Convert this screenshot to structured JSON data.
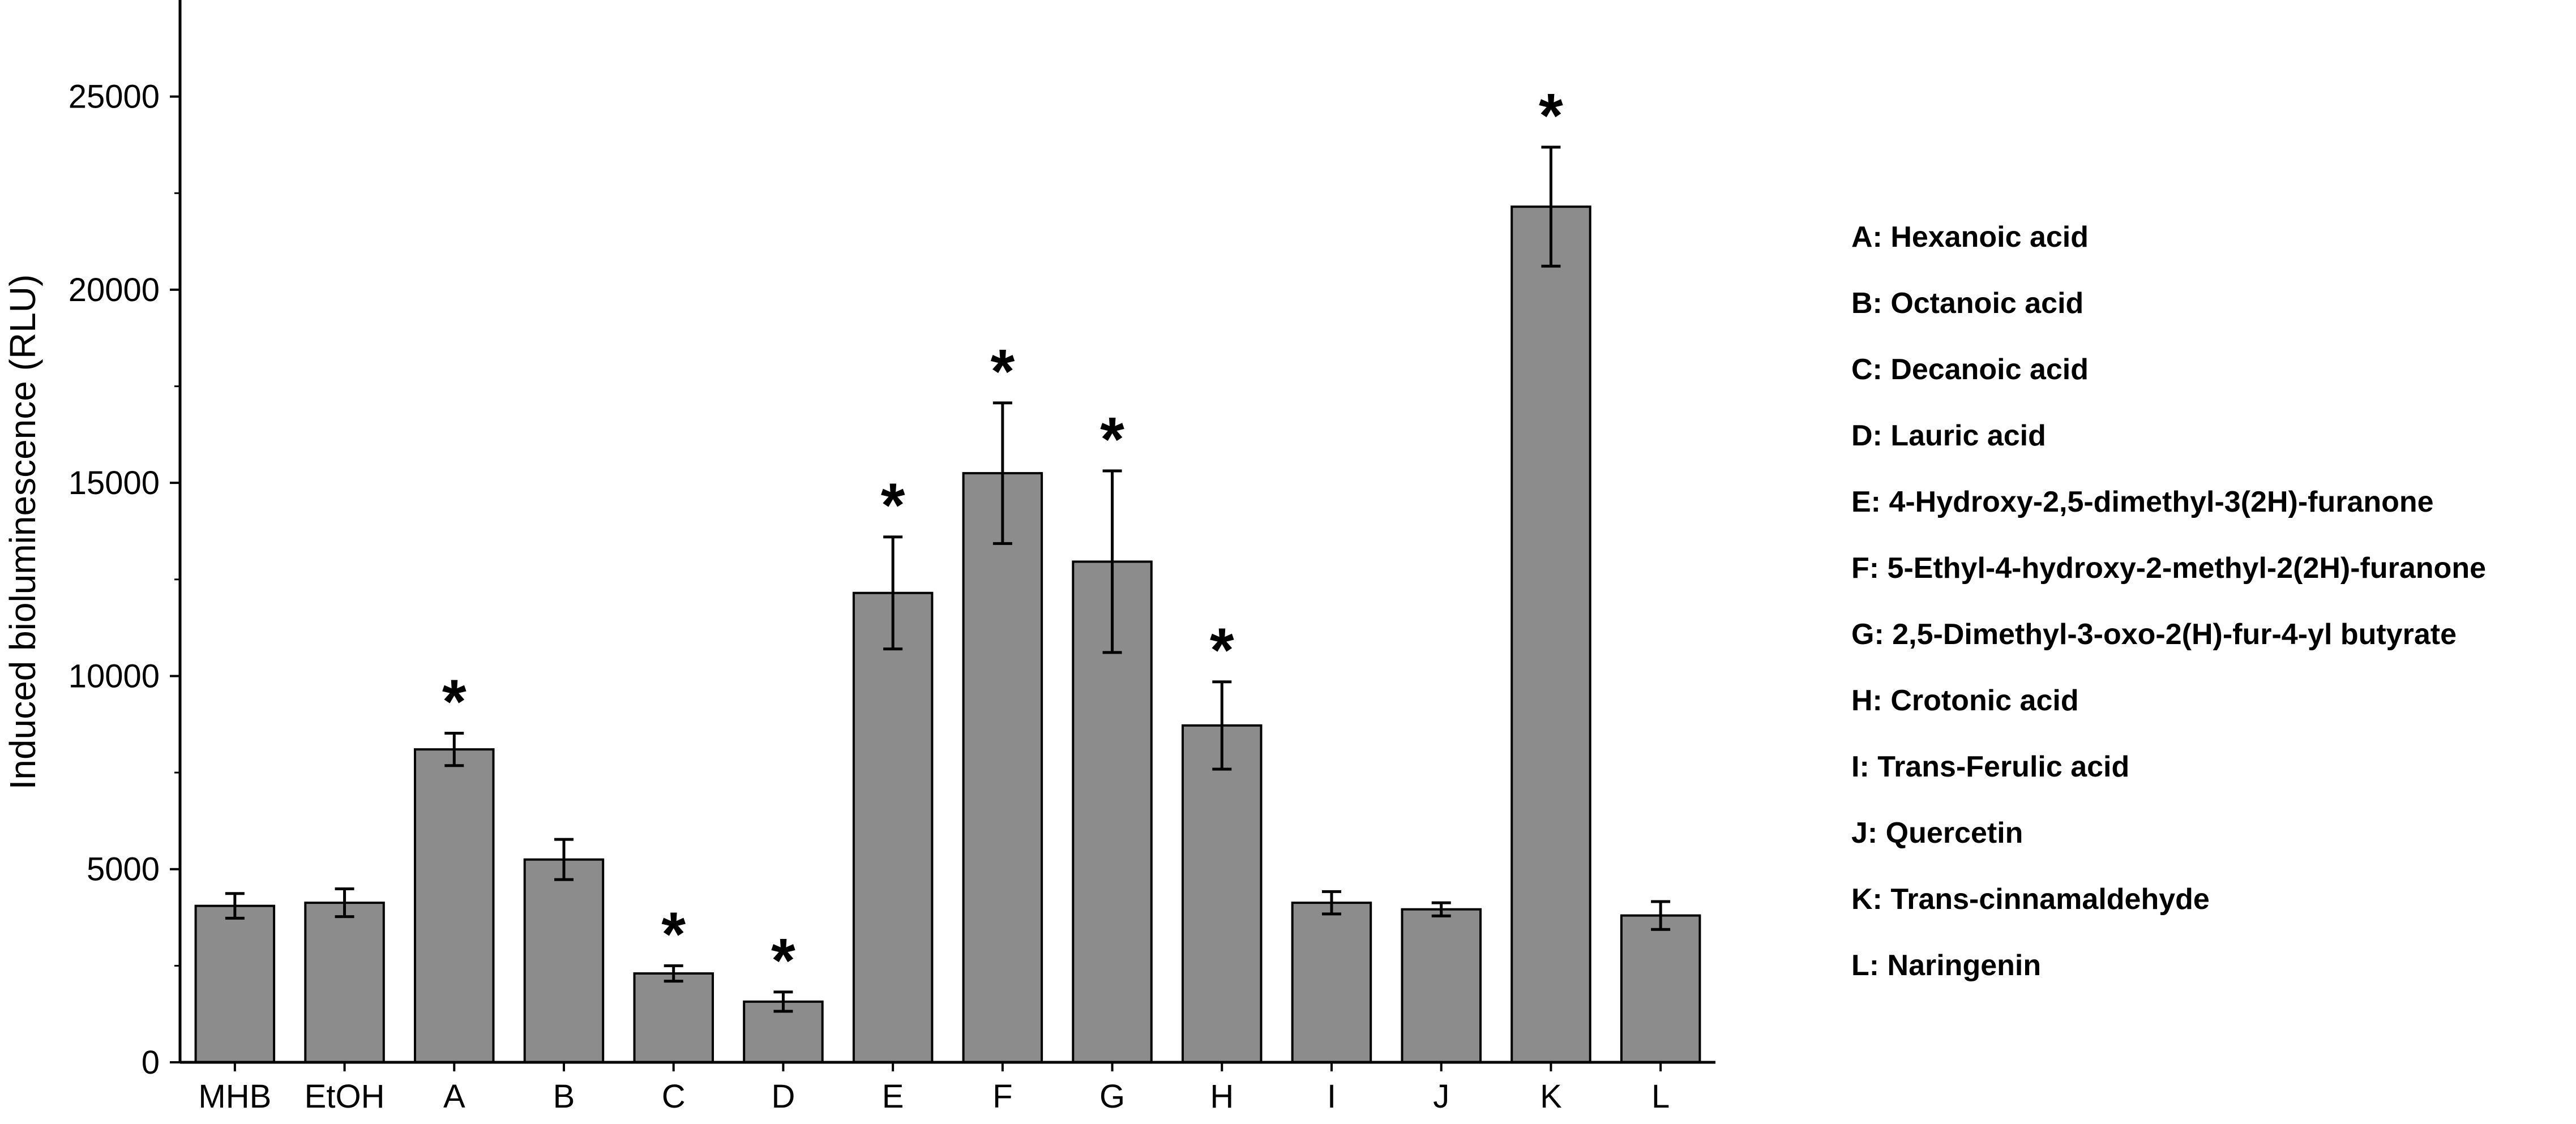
{
  "chart_data": {
    "type": "bar",
    "title": "",
    "xlabel": "",
    "ylabel": "Induced bioluminescence (RLU)",
    "ylim": [
      0,
      27500
    ],
    "yticks": [
      0,
      5000,
      10000,
      15000,
      20000,
      25000
    ],
    "categories": [
      "MHB",
      "EtOH",
      "A",
      "B",
      "C",
      "D",
      "E",
      "F",
      "G",
      "H",
      "I",
      "J",
      "K",
      "L"
    ],
    "values": [
      4050,
      4130,
      8100,
      5250,
      2300,
      1570,
      12150,
      15250,
      12960,
      8720,
      4130,
      3960,
      22150,
      3800
    ],
    "errors": [
      320,
      360,
      420,
      520,
      200,
      250,
      1450,
      1820,
      2350,
      1130,
      290,
      170,
      1540,
      360
    ],
    "significance": [
      false,
      false,
      true,
      false,
      true,
      true,
      true,
      true,
      true,
      true,
      false,
      false,
      true,
      false
    ],
    "significance_marker": "*",
    "bar_color": "#8c8c8c",
    "grid": false,
    "legend_entries": [
      "A: Hexanoic acid",
      "B: Octanoic acid",
      "C: Decanoic acid",
      "D: Lauric acid",
      "E: 4-Hydroxy-2,5-dimethyl-3(2H)-furanone",
      "F: 5-Ethyl-4-hydroxy-2-methyl-2(2H)-furanone",
      "G: 2,5-Dimethyl-3-oxo-2(H)-fur-4-yl butyrate",
      "H: Crotonic acid",
      "I: Trans-Ferulic acid",
      "J: Quercetin",
      "K: Trans-cinnamaldehyde",
      "L: Naringenin"
    ],
    "legend_position": "right"
  }
}
